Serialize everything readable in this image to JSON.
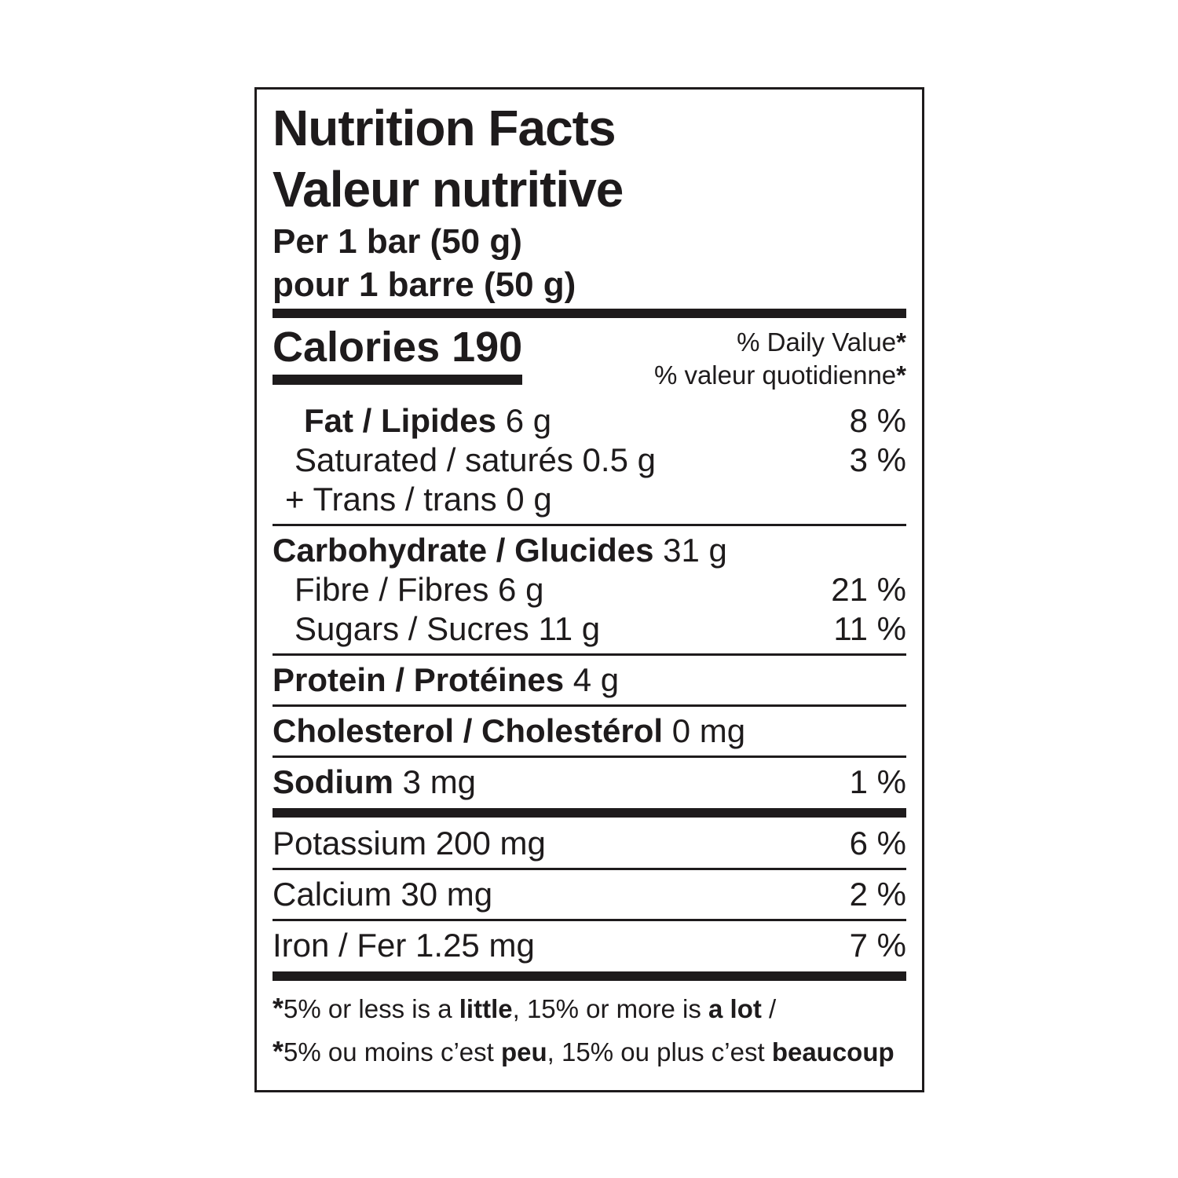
{
  "label": {
    "title_en": "Nutrition Facts",
    "title_fr": "Valeur nutritive",
    "serving_en": "Per 1 bar (50 g)",
    "serving_fr": "pour 1 barre (50 g)",
    "calories_label": "Calories",
    "calories_value": "190",
    "daily_value_en": "% Daily Value",
    "daily_value_fr": "% valeur quotidienne",
    "asterisk": "*",
    "ink_color": "#1e1b1c",
    "background_color": "#ffffff",
    "rows": [
      {
        "bold": "Fat / Lipides",
        "rest": " 6 g",
        "dv": "8 %",
        "indent": 2,
        "divider_after": "none"
      },
      {
        "bold": "",
        "rest": "Saturated / saturés 0.5 g",
        "dv": "3 %",
        "indent": 1,
        "divider_after": "none"
      },
      {
        "bold": "",
        "rest": "+ Trans / trans 0 g",
        "dv": "",
        "indent": 3,
        "divider_after": "thin"
      },
      {
        "bold": "Carbohydrate / Glucides",
        "rest": " 31 g",
        "dv": "",
        "indent": 0,
        "divider_after": "none"
      },
      {
        "bold": "",
        "rest": "Fibre / Fibres 6 g",
        "dv": "21 %",
        "indent": 1,
        "divider_after": "none"
      },
      {
        "bold": "",
        "rest": "Sugars / Sucres 11 g",
        "dv": "11 %",
        "indent": 1,
        "divider_after": "thin"
      },
      {
        "bold": "Protein / Protéines",
        "rest": " 4 g",
        "dv": "",
        "indent": 0,
        "divider_after": "thin"
      },
      {
        "bold": "Cholesterol / Cholestérol",
        "rest": " 0 mg",
        "dv": "",
        "indent": 0,
        "divider_after": "thin"
      },
      {
        "bold": "Sodium",
        "rest": " 3 mg",
        "dv": "1 %",
        "indent": 0,
        "divider_after": "thick"
      },
      {
        "bold": "",
        "rest": "Potassium 200 mg",
        "dv": "6 %",
        "indent": 0,
        "divider_after": "thin"
      },
      {
        "bold": "",
        "rest": "Calcium 30 mg",
        "dv": "2 %",
        "indent": 0,
        "divider_after": "thin"
      },
      {
        "bold": "",
        "rest": "Iron / Fer 1.25 mg",
        "dv": "7 %",
        "indent": 0,
        "divider_after": "thick"
      }
    ],
    "footnotes": [
      {
        "segments": [
          {
            "t": "*",
            "b": true,
            "ast": true
          },
          {
            "t": "5% or less is a ",
            "b": false
          },
          {
            "t": "little",
            "b": true
          },
          {
            "t": ", 15% or more is ",
            "b": false
          },
          {
            "t": "a lot",
            "b": true
          },
          {
            "t": " /",
            "b": false
          }
        ]
      },
      {
        "segments": [
          {
            "t": "*",
            "b": true,
            "ast": true
          },
          {
            "t": "5% ou moins c’est ",
            "b": false
          },
          {
            "t": "peu",
            "b": true
          },
          {
            "t": ", 15% ou plus c’est ",
            "b": false
          },
          {
            "t": "beaucoup",
            "b": true
          }
        ]
      }
    ]
  }
}
